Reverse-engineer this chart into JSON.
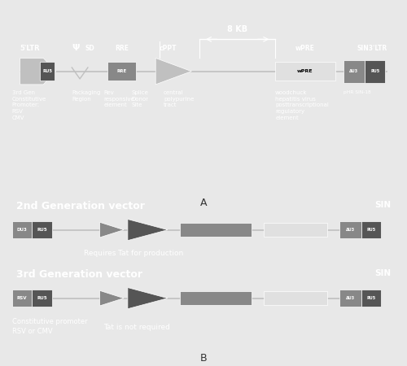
{
  "bg_color": "#3d3d3d",
  "white_bg": "#e8e8e8",
  "text_color": "#ffffff",
  "dark_text": "#333333",
  "c_light_gray": "#c0c0c0",
  "c_mid_gray": "#888888",
  "c_dark_gray": "#555555",
  "c_white_box": "#e0e0e0",
  "c_very_dark": "#2a2a2a",
  "title_A": "A",
  "title_B": "B",
  "ltr5": "5'LTR",
  "psi": "Ψ",
  "sd": "SD",
  "rre": "RRE",
  "cppt": "cPPT",
  "8kb": "8 KB",
  "wpre": "wPRE",
  "sin3ltr": "SIN3'LTR",
  "ru5": "RU5",
  "delta_u3": "ΔU3",
  "phr_sin18": "pHR SIN-18",
  "gen3_desc": "3rd Gen\nConstitutive\nPromoter:\nRSV\nCMV",
  "packaging": "Packaging\nRegion",
  "rev": "Rev\nresponsive\nelement",
  "splice": "Splice\nDonor\nSite",
  "central": "central\npolypurine\ntract",
  "woodchuck": "woodchuck\nhepatitis virus\nposttranscriptional\nregulatory\nelement",
  "title_2nd": "2nd Generation vector",
  "sin_2nd": "SIN",
  "note_2nd": "Requires Tat for production",
  "du3": "DU3",
  "title_3rd": "3rd Generation vector",
  "sin_3rd": "SIN",
  "note_3rd": "Tat is not required",
  "rsv": "RSV",
  "desc_3rd": "Constitutive promoter\nRSV or CMV"
}
